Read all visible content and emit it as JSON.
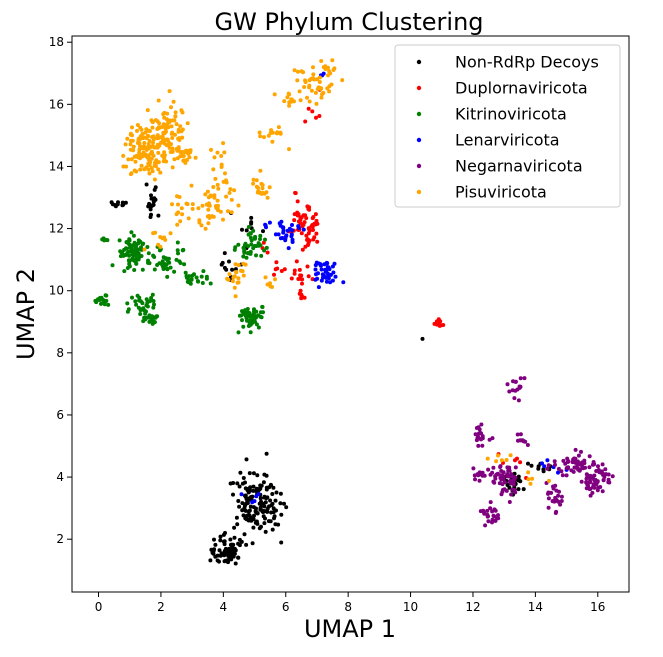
{
  "chart_data": {
    "type": "scatter",
    "title": "GW Phylum Clustering",
    "xlabel": "UMAP 1",
    "ylabel": "UMAP 2",
    "xlim": [
      -0.85,
      17.0
    ],
    "ylim": [
      0.3,
      18.2
    ],
    "xticks": [
      0,
      2,
      4,
      6,
      8,
      10,
      12,
      14,
      16
    ],
    "yticks": [
      2,
      4,
      6,
      8,
      10,
      12,
      14,
      16,
      18
    ],
    "grid": false,
    "legend_position": "upper right",
    "series": [
      {
        "name": "Non-RdRp Decoys",
        "color": "#000000",
        "clusters": [
          {
            "center": [
              4.1,
              1.6
            ],
            "spread": [
              0.3,
              0.25
            ],
            "n": 70
          },
          {
            "center": [
              5.1,
              3.2
            ],
            "spread": [
              0.4,
              0.5
            ],
            "n": 150
          },
          {
            "center": [
              0.7,
              12.8
            ],
            "spread": [
              0.15,
              0.05
            ],
            "n": 12
          },
          {
            "center": [
              1.7,
              12.8
            ],
            "spread": [
              0.08,
              0.35
            ],
            "n": 20
          },
          {
            "center": [
              4.1,
              10.8
            ],
            "spread": [
              0.15,
              0.2
            ],
            "n": 10
          },
          {
            "center": [
              4.8,
              12.0
            ],
            "spread": [
              0.3,
              0.5
            ],
            "n": 10
          },
          {
            "center": [
              13.3,
              3.8
            ],
            "spread": [
              0.2,
              0.2
            ],
            "n": 22
          },
          {
            "center": [
              14.1,
              4.3
            ],
            "spread": [
              0.2,
              0.1
            ],
            "n": 10
          },
          {
            "center": [
              10.4,
              8.45
            ],
            "spread": [
              0.01,
              0.01
            ],
            "n": 1
          }
        ]
      },
      {
        "name": "Duplornaviricota",
        "color": "#ff0000",
        "clusters": [
          {
            "center": [
              6.6,
              12.3
            ],
            "spread": [
              0.25,
              0.4
            ],
            "n": 60
          },
          {
            "center": [
              6.4,
              10.6
            ],
            "spread": [
              0.2,
              0.2
            ],
            "n": 15
          },
          {
            "center": [
              6.5,
              9.9
            ],
            "spread": [
              0.08,
              0.1
            ],
            "n": 8
          },
          {
            "center": [
              5.6,
              10.9
            ],
            "spread": [
              0.15,
              0.3
            ],
            "n": 8
          },
          {
            "center": [
              10.9,
              8.95
            ],
            "spread": [
              0.1,
              0.08
            ],
            "n": 10
          },
          {
            "center": [
              6.9,
              16.2
            ],
            "spread": [
              0.15,
              0.5
            ],
            "n": 6
          },
          {
            "center": [
              13.4,
              4.5
            ],
            "spread": [
              0.3,
              0.3
            ],
            "n": 6
          }
        ]
      },
      {
        "name": "Kitrinoviricota",
        "color": "#008000",
        "clusters": [
          {
            "center": [
              1.1,
              11.2
            ],
            "spread": [
              0.25,
              0.25
            ],
            "n": 80
          },
          {
            "center": [
              0.2,
              11.6
            ],
            "spread": [
              0.1,
              0.06
            ],
            "n": 6
          },
          {
            "center": [
              2.1,
              10.9
            ],
            "spread": [
              0.2,
              0.2
            ],
            "n": 30
          },
          {
            "center": [
              0.1,
              9.7
            ],
            "spread": [
              0.15,
              0.08
            ],
            "n": 20
          },
          {
            "center": [
              1.4,
              9.5
            ],
            "spread": [
              0.3,
              0.15
            ],
            "n": 30
          },
          {
            "center": [
              1.7,
              9.1
            ],
            "spread": [
              0.2,
              0.1
            ],
            "n": 20
          },
          {
            "center": [
              3.2,
              10.4
            ],
            "spread": [
              0.2,
              0.1
            ],
            "n": 20
          },
          {
            "center": [
              4.9,
              9.1
            ],
            "spread": [
              0.25,
              0.2
            ],
            "n": 50
          },
          {
            "center": [
              4.9,
              11.5
            ],
            "spread": [
              0.2,
              0.25
            ],
            "n": 40
          },
          {
            "center": [
              2.6,
              11.2
            ],
            "spread": [
              0.1,
              0.3
            ],
            "n": 10
          }
        ]
      },
      {
        "name": "Lenarviricota",
        "color": "#0000ff",
        "clusters": [
          {
            "center": [
              7.3,
              10.6
            ],
            "spread": [
              0.25,
              0.2
            ],
            "n": 40
          },
          {
            "center": [
              6.1,
              11.8
            ],
            "spread": [
              0.2,
              0.15
            ],
            "n": 25
          },
          {
            "center": [
              5.4,
              12.2
            ],
            "spread": [
              0.2,
              0.1
            ],
            "n": 6
          },
          {
            "center": [
              7.1,
              17.0
            ],
            "spread": [
              0.1,
              0.05
            ],
            "n": 3
          },
          {
            "center": [
              14.6,
              4.3
            ],
            "spread": [
              0.3,
              0.3
            ],
            "n": 6
          },
          {
            "center": [
              4.9,
              3.2
            ],
            "spread": [
              0.2,
              0.2
            ],
            "n": 5
          }
        ]
      },
      {
        "name": "Negarnaviricota",
        "color": "#800080",
        "clusters": [
          {
            "center": [
              12.9,
              4.1
            ],
            "spread": [
              0.25,
              0.1
            ],
            "n": 30
          },
          {
            "center": [
              12.3,
              5.3
            ],
            "spread": [
              0.15,
              0.2
            ],
            "n": 20
          },
          {
            "center": [
              12.6,
              2.8
            ],
            "spread": [
              0.15,
              0.15
            ],
            "n": 25
          },
          {
            "center": [
              13.2,
              3.8
            ],
            "spread": [
              0.15,
              0.3
            ],
            "n": 25
          },
          {
            "center": [
              13.3,
              6.8
            ],
            "spread": [
              0.15,
              0.2
            ],
            "n": 15
          },
          {
            "center": [
              13.6,
              5.2
            ],
            "spread": [
              0.15,
              0.1
            ],
            "n": 10
          },
          {
            "center": [
              14.6,
              3.4
            ],
            "spread": [
              0.15,
              0.3
            ],
            "n": 25
          },
          {
            "center": [
              15.2,
              4.4
            ],
            "spread": [
              0.35,
              0.2
            ],
            "n": 50
          },
          {
            "center": [
              15.9,
              3.9
            ],
            "spread": [
              0.25,
              0.2
            ],
            "n": 60
          },
          {
            "center": [
              12.2,
              4.1
            ],
            "spread": [
              0.1,
              0.1
            ],
            "n": 10
          }
        ]
      },
      {
        "name": "Pisuviricota",
        "color": "#ffa500",
        "clusters": [
          {
            "center": [
              1.6,
              14.5
            ],
            "spread": [
              0.35,
              0.45
            ],
            "n": 140
          },
          {
            "center": [
              2.2,
              15.2
            ],
            "spread": [
              0.3,
              0.45
            ],
            "n": 70
          },
          {
            "center": [
              2.8,
              14.4
            ],
            "spread": [
              0.2,
              0.15
            ],
            "n": 25
          },
          {
            "center": [
              7.0,
              16.7
            ],
            "spread": [
              0.35,
              0.3
            ],
            "n": 50
          },
          {
            "center": [
              6.0,
              16.2
            ],
            "spread": [
              0.2,
              0.15
            ],
            "n": 12
          },
          {
            "center": [
              5.6,
              15.0
            ],
            "spread": [
              0.25,
              0.15
            ],
            "n": 15
          },
          {
            "center": [
              5.2,
              13.3
            ],
            "spread": [
              0.15,
              0.2
            ],
            "n": 20
          },
          {
            "center": [
              3.6,
              12.6
            ],
            "spread": [
              0.2,
              0.25
            ],
            "n": 30
          },
          {
            "center": [
              4.1,
              13.2
            ],
            "spread": [
              0.25,
              0.3
            ],
            "n": 20
          },
          {
            "center": [
              2.7,
              12.7
            ],
            "spread": [
              0.2,
              0.3
            ],
            "n": 15
          },
          {
            "center": [
              4.4,
              10.5
            ],
            "spread": [
              0.2,
              0.25
            ],
            "n": 20
          },
          {
            "center": [
              3.9,
              14.2
            ],
            "spread": [
              0.15,
              0.25
            ],
            "n": 10
          },
          {
            "center": [
              5.5,
              10.2
            ],
            "spread": [
              0.1,
              0.1
            ],
            "n": 6
          },
          {
            "center": [
              1.9,
              11.6
            ],
            "spread": [
              0.2,
              0.2
            ],
            "n": 10
          },
          {
            "center": [
              12.8,
              4.5
            ],
            "spread": [
              0.2,
              0.15
            ],
            "n": 6
          },
          {
            "center": [
              14.0,
              4.0
            ],
            "spread": [
              0.15,
              0.15
            ],
            "n": 5
          }
        ]
      }
    ]
  }
}
